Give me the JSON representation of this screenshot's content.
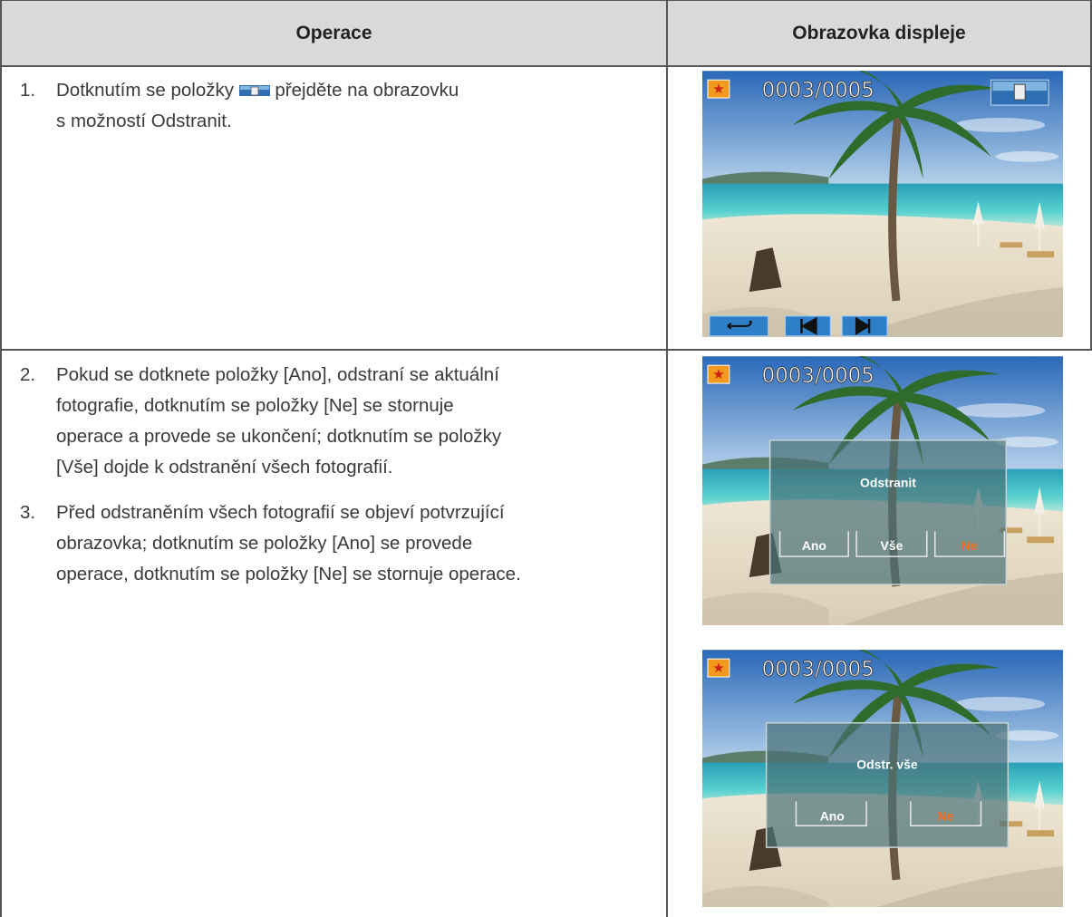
{
  "table": {
    "headers": [
      "Operace",
      "Obrazovka displeje"
    ],
    "rows": [
      {
        "steps": [
          {
            "number": "1.",
            "lines": [
              "Dotknutím se položky",
              "přejděte na obrazovku",
              "s možností Odstranit."
            ]
          }
        ],
        "screens": [
          {
            "counter": "0003/0005"
          }
        ]
      },
      {
        "steps": [
          {
            "number": "2.",
            "lines": [
              "Pokud se dotknete položky [Ano], odstraní se aktuální",
              "fotografie, dotknutím se položky [Ne] se stornuje",
              "operace a provede se ukončení; dotknutím se položky",
              "[Vše] dojde k odstranění všech fotografií."
            ]
          },
          {
            "number": "3.",
            "lines": [
              "Před odstraněním všech fotografií se objeví potvrzující",
              "obrazovka; dotknutím se položky [Ano] se provede",
              "operace, dotknutím se položky [Ne] se stornuje operace."
            ]
          }
        ],
        "screens": [
          {
            "counter": "0003/0005",
            "dialog_title": "Odstranit",
            "buttons": [
              "Ano",
              "Vše",
              "Ne"
            ]
          },
          {
            "counter": "0003/0005",
            "dialog_title": "Odstr. vše",
            "buttons": [
              "Ano",
              "Ne"
            ]
          }
        ]
      }
    ]
  }
}
